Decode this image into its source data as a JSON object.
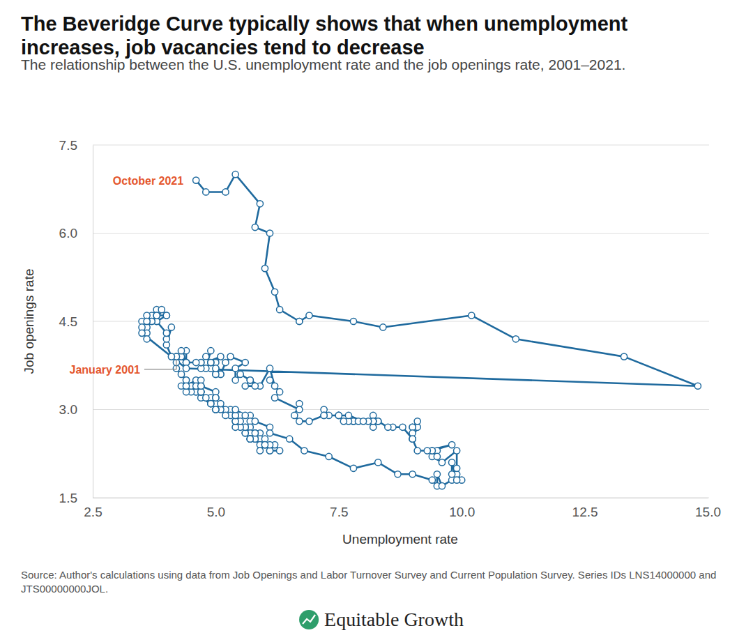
{
  "chart_data": {
    "type": "line",
    "title": "The Beveridge Curve typically shows that when unemployment increases, job vacancies tend to decrease",
    "subtitle": "The relationship between the U.S. unemployment rate and the job openings rate, 2001–2021.",
    "x_label": "Unemployment rate",
    "y_label": "Job openings rate",
    "source": "Source: Author's calculations using data from Job Openings and Labor Turnover Survey and Current Population Survey. Series IDs LNS14000000 and JTS00000000JOL.",
    "branding": "Equitable Growth",
    "annotations": [
      "January 2001",
      "October 2021"
    ],
    "color": "#1f6a9e",
    "marker": "circle",
    "grid": true,
    "xlim": [
      2.5,
      15.0
    ],
    "xticks": [
      {
        "value": 2.5,
        "label": "2.5"
      },
      {
        "value": 5.0,
        "label": "5.0"
      },
      {
        "value": 7.5,
        "label": "7.5"
      },
      {
        "value": 10.0,
        "label": "10.0"
      },
      {
        "value": 12.5,
        "label": "12.5"
      },
      {
        "value": 15.0,
        "label": "15.0"
      }
    ],
    "ylim": [
      1.5,
      7.5
    ],
    "yticks": [
      1.5,
      {
        "value": 3.0,
        "label": "3.0"
      },
      4.5,
      {
        "value": 6.0,
        "label": "6.0"
      },
      7.5
    ],
    "x": [
      4.2,
      4.2,
      4.3,
      4.4,
      4.3,
      4.5,
      4.6,
      4.9,
      5.0,
      5.3,
      5.5,
      5.7,
      5.7,
      5.7,
      5.7,
      5.9,
      5.8,
      5.8,
      5.8,
      5.7,
      5.7,
      5.7,
      5.9,
      6.0,
      5.8,
      5.9,
      5.9,
      6.0,
      6.1,
      6.3,
      6.2,
      6.1,
      6.1,
      6.0,
      5.8,
      5.7,
      5.7,
      5.6,
      5.8,
      5.6,
      5.6,
      5.6,
      5.5,
      5.4,
      5.4,
      5.5,
      5.4,
      5.4,
      5.3,
      5.4,
      5.2,
      5.2,
      5.1,
      5.0,
      5.0,
      4.9,
      5.0,
      5.0,
      5.0,
      4.9,
      4.7,
      4.8,
      4.7,
      4.7,
      4.6,
      4.6,
      4.7,
      4.7,
      4.5,
      4.4,
      4.5,
      4.4,
      4.6,
      4.5,
      4.4,
      4.5,
      4.4,
      4.6,
      4.7,
      4.6,
      4.7,
      4.7,
      4.7,
      5.0,
      5.0,
      4.9,
      5.1,
      5.0,
      5.4,
      5.6,
      5.8,
      6.1,
      6.1,
      6.5,
      6.8,
      7.3,
      7.8,
      8.3,
      8.7,
      9.0,
      9.4,
      9.5,
      9.5,
      9.6,
      9.8,
      10.0,
      9.9,
      9.9,
      9.8,
      9.8,
      9.9,
      9.9,
      9.6,
      9.4,
      9.4,
      9.5,
      9.5,
      9.4,
      9.8,
      9.3,
      9.1,
      9.0,
      9.0,
      9.1,
      9.0,
      9.1,
      9.0,
      9.0,
      9.0,
      8.8,
      8.6,
      8.5,
      8.3,
      8.3,
      8.2,
      8.2,
      8.2,
      8.2,
      8.2,
      8.1,
      7.8,
      7.8,
      7.7,
      7.9,
      8.0,
      7.7,
      7.5,
      7.6,
      7.5,
      7.5,
      7.3,
      7.2,
      7.2,
      7.2,
      6.9,
      6.7,
      6.6,
      6.7,
      6.7,
      6.2,
      6.3,
      6.1,
      6.2,
      6.1,
      5.9,
      5.7,
      5.8,
      5.6,
      5.7,
      5.5,
      5.4,
      5.4,
      5.6,
      5.3,
      5.2,
      5.1,
      5.0,
      5.0,
      5.1,
      5.0,
      4.8,
      4.9,
      5.0,
      5.1,
      4.8,
      4.9,
      4.8,
      4.9,
      5.0,
      4.9,
      4.7,
      4.7,
      4.7,
      4.6,
      4.4,
      4.4,
      4.4,
      4.3,
      4.3,
      4.4,
      4.3,
      4.2,
      4.2,
      4.1,
      4.0,
      4.1,
      4.0,
      4.0,
      3.8,
      4.0,
      3.8,
      3.8,
      3.7,
      3.8,
      3.8,
      3.9,
      4.0,
      3.8,
      3.8,
      3.7,
      3.6,
      3.6,
      3.7,
      3.6,
      3.5,
      3.6,
      3.6,
      3.6,
      3.5,
      3.5,
      4.4,
      14.8,
      13.3,
      11.1,
      10.2,
      8.4,
      7.8,
      6.9,
      6.7,
      6.7,
      6.3,
      6.2,
      6.0,
      6.1,
      5.8,
      5.9,
      5.4,
      5.2,
      4.8,
      4.6
    ],
    "values": [
      3.9,
      3.7,
      3.6,
      3.5,
      3.4,
      3.4,
      3.3,
      3.2,
      3.1,
      3.0,
      2.9,
      2.9,
      2.8,
      2.7,
      2.6,
      2.6,
      2.6,
      2.6,
      2.6,
      2.6,
      2.5,
      2.5,
      2.5,
      2.5,
      2.5,
      2.4,
      2.3,
      2.4,
      2.3,
      2.3,
      2.4,
      2.3,
      2.4,
      2.4,
      2.5,
      2.5,
      2.5,
      2.6,
      2.6,
      2.6,
      2.7,
      2.7,
      2.7,
      2.7,
      2.8,
      2.8,
      2.8,
      2.9,
      2.9,
      2.9,
      3.0,
      2.9,
      3.0,
      3.0,
      3.0,
      3.1,
      3.1,
      3.1,
      3.2,
      3.1,
      3.2,
      3.2,
      3.3,
      3.3,
      3.3,
      3.4,
      3.3,
      3.4,
      3.3,
      3.3,
      3.4,
      3.4,
      3.4,
      3.4,
      3.5,
      3.4,
      3.4,
      3.5,
      3.4,
      3.4,
      3.5,
      3.3,
      3.4,
      3.3,
      3.2,
      3.1,
      3.1,
      3.0,
      3.0,
      2.9,
      2.8,
      2.7,
      2.6,
      2.5,
      2.3,
      2.2,
      2.0,
      2.1,
      1.9,
      1.9,
      1.8,
      1.7,
      1.9,
      1.7,
      1.8,
      1.8,
      1.9,
      1.8,
      2.1,
      1.9,
      2.0,
      2.3,
      2.1,
      2.2,
      2.3,
      2.3,
      2.2,
      2.3,
      2.4,
      2.3,
      2.3,
      2.5,
      2.5,
      2.7,
      2.7,
      2.8,
      2.7,
      2.6,
      2.5,
      2.7,
      2.7,
      2.7,
      2.8,
      2.8,
      2.9,
      2.8,
      2.8,
      2.7,
      2.8,
      2.8,
      2.8,
      2.8,
      2.8,
      2.8,
      2.8,
      2.9,
      2.9,
      2.8,
      2.9,
      2.9,
      2.9,
      3.0,
      2.9,
      2.9,
      2.8,
      2.8,
      2.9,
      3.1,
      3.0,
      3.2,
      3.3,
      3.5,
      3.4,
      3.7,
      3.4,
      3.5,
      3.4,
      3.4,
      3.5,
      3.6,
      3.5,
      3.7,
      3.8,
      3.9,
      3.8,
      3.6,
      3.6,
      3.7,
      3.6,
      3.6,
      3.9,
      3.7,
      3.8,
      3.9,
      3.8,
      4.0,
      3.7,
      3.8,
      3.7,
      3.8,
      3.7,
      3.8,
      3.8,
      3.8,
      3.8,
      3.8,
      4.0,
      3.9,
      3.9,
      3.8,
      4.0,
      3.8,
      3.9,
      3.9,
      4.1,
      4.4,
      4.2,
      4.3,
      4.5,
      4.6,
      4.6,
      4.7,
      4.6,
      4.6,
      4.5,
      4.7,
      4.6,
      4.5,
      4.6,
      4.5,
      4.6,
      4.4,
      4.5,
      4.5,
      4.5,
      4.3,
      4.5,
      4.2,
      4.4,
      4.3,
      3.7,
      3.4,
      3.9,
      4.2,
      4.6,
      4.4,
      4.5,
      4.6,
      4.5,
      4.5,
      4.7,
      5.0,
      5.4,
      6.0,
      6.1,
      6.5,
      7.0,
      6.7,
      6.7,
      6.9
    ]
  }
}
